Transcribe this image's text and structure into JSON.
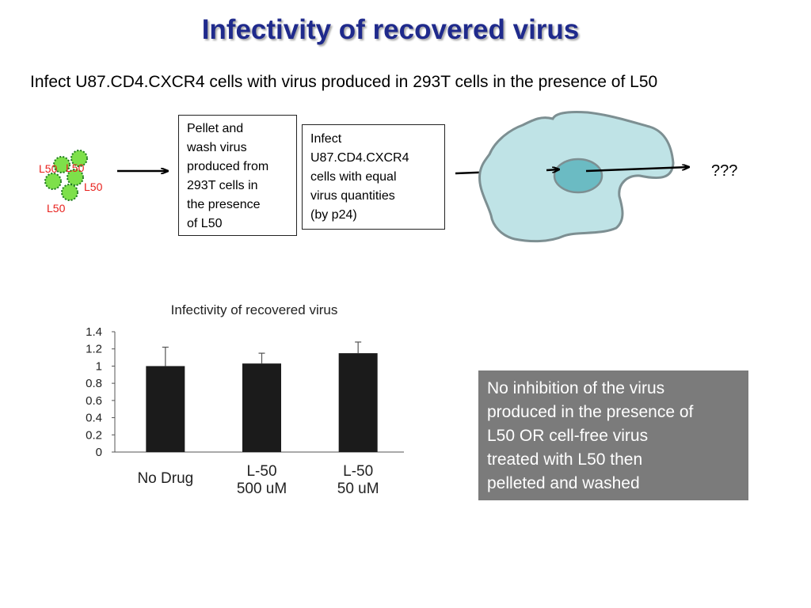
{
  "slide": {
    "title": "Infectivity of recovered virus",
    "subtitle": "Infect U87.CD4.CXCR4 cells with virus produced in 293T cells in the presence of L50"
  },
  "diagram": {
    "virus_labels": [
      "L50",
      "L50",
      "L50",
      "L50"
    ],
    "step1_text": "Pellet and\nwash virus\nproduced from\n293T cells in\nthe presence\nof L50",
    "step2_text": "Infect\nU87.CD4.CXCR4\ncells with equal\nvirus quantities\n(by p24)",
    "result_text": "???",
    "colors": {
      "virus_fill": "#7ee04a",
      "virus_border": "#1e7a1e",
      "virus_label": "#e8201c",
      "cell_fill": "#bfe3e6",
      "cell_border": "#7d8f92",
      "nucleus_fill": "#6bbbc3"
    }
  },
  "conclusion": {
    "text": " No inhibition of the virus\nproduced in the presence of\nL50 OR cell-free virus\ntreated with L50 then\npelleted and washed",
    "background": "#7b7b7b"
  },
  "chart_data": {
    "type": "bar",
    "title": "Infectivity of recovered virus",
    "categories": [
      [
        "No Drug"
      ],
      [
        "L-50",
        "500 uM"
      ],
      [
        "L-50",
        "50 uM"
      ]
    ],
    "values": [
      1.0,
      1.03,
      1.15
    ],
    "error": [
      0.22,
      0.12,
      0.13
    ],
    "xlabel": "",
    "ylabel": "",
    "ylim": [
      0,
      1.4
    ],
    "yticks": [
      "0",
      "0.2",
      "0.4",
      "0.6",
      "0.8",
      "1",
      "1.2",
      "1.4"
    ],
    "bar_color": "#1b1b1b",
    "grid": false,
    "legend": "none"
  }
}
